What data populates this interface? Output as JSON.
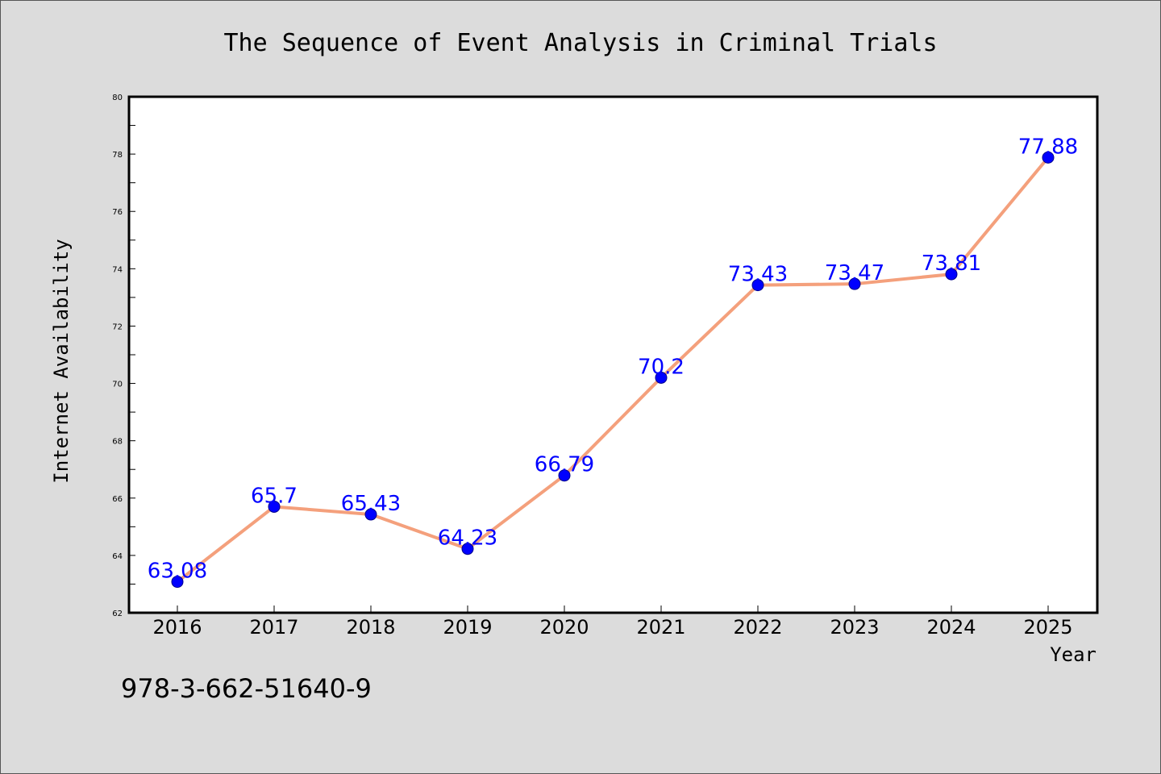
{
  "chart_data": {
    "type": "line",
    "title": "The Sequence of Event Analysis in Criminal Trials",
    "xlabel": "Year",
    "ylabel": "Internet Availability",
    "categories": [
      "2016",
      "2017",
      "2018",
      "2019",
      "2020",
      "2021",
      "2022",
      "2023",
      "2024",
      "2025"
    ],
    "series": [
      {
        "values": [
          63.08,
          65.7,
          65.43,
          64.23,
          66.79,
          70.2,
          73.43,
          73.47,
          73.81,
          77.88
        ],
        "data_labels": [
          "63.08",
          "65.7",
          "65.43",
          "64.23",
          "66.79",
          "70.2",
          "73.43",
          "73.47",
          "73.81",
          "77.88"
        ]
      }
    ],
    "ylim": [
      62,
      80
    ],
    "yticks": [
      "62",
      "64",
      "66",
      "68",
      "70",
      "72",
      "74",
      "76",
      "78",
      "80"
    ],
    "grid": false,
    "line_color": "#f4a07c",
    "marker_color": "#0000ff",
    "label_color": "#0000ff"
  },
  "footer": {
    "code": "978-3-662-51640-9"
  }
}
